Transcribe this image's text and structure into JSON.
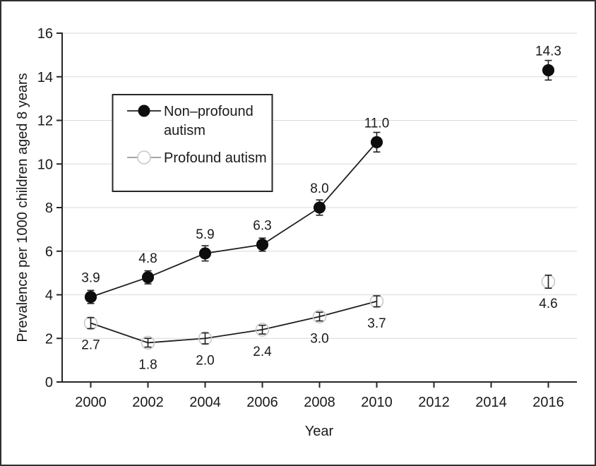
{
  "chart_data": {
    "type": "line",
    "title": "",
    "xlabel": "Year",
    "ylabel": "Prevalence per 1000 children aged 8 years",
    "x": [
      2000,
      2002,
      2004,
      2006,
      2008,
      2010,
      2016
    ],
    "series": [
      {
        "name": "Non–profound autism",
        "marker": "filled-circle",
        "values": [
          3.9,
          4.8,
          5.9,
          6.3,
          8.0,
          11.0,
          14.3
        ],
        "errors": [
          0.3,
          0.3,
          0.35,
          0.3,
          0.35,
          0.45,
          0.45
        ],
        "labels": [
          "3.9",
          "4.8",
          "5.9",
          "6.3",
          "8.0",
          "11.0",
          "14.3"
        ],
        "label_position": "above"
      },
      {
        "name": "Profound autism",
        "marker": "open-circle",
        "values": [
          2.7,
          1.8,
          2.0,
          2.4,
          3.0,
          3.7,
          4.6
        ],
        "errors": [
          0.25,
          0.2,
          0.25,
          0.2,
          0.2,
          0.25,
          0.3
        ],
        "labels": [
          "2.7",
          "1.8",
          "2.0",
          "2.4",
          "3.0",
          "3.7",
          "4.6"
        ],
        "label_position": "below"
      }
    ],
    "line_break_gap_years": 2,
    "xticks": [
      2000,
      2002,
      2004,
      2006,
      2008,
      2010,
      2012,
      2014,
      2016
    ],
    "yticks": [
      0,
      2,
      4,
      6,
      8,
      10,
      12,
      14,
      16
    ],
    "xlim": [
      1999,
      2017
    ],
    "ylim": [
      0,
      16
    ],
    "grid": "horizontal",
    "legend_position": "upper-left",
    "legend": {
      "entries": [
        {
          "label": "Non–profound autism",
          "display_lines": [
            "Non–profound",
            "autism"
          ],
          "marker": "filled-circle"
        },
        {
          "label": "Profound autism",
          "display_lines": [
            "Profound autism"
          ],
          "marker": "open-circle"
        }
      ]
    },
    "colors": {
      "series_line": "#1f1f1f",
      "filled_marker": "#0d0d0d",
      "open_marker_stroke": "#c9c9c9",
      "error_bar": "#1f1f1f",
      "grid": "#d9d9d9",
      "axis": "#262626",
      "text": "#1a1a1a",
      "legend_profound_line": "#999999",
      "legend_border": "#262626",
      "background": "#ffffff",
      "frame_border": "#2f2f2f"
    }
  }
}
